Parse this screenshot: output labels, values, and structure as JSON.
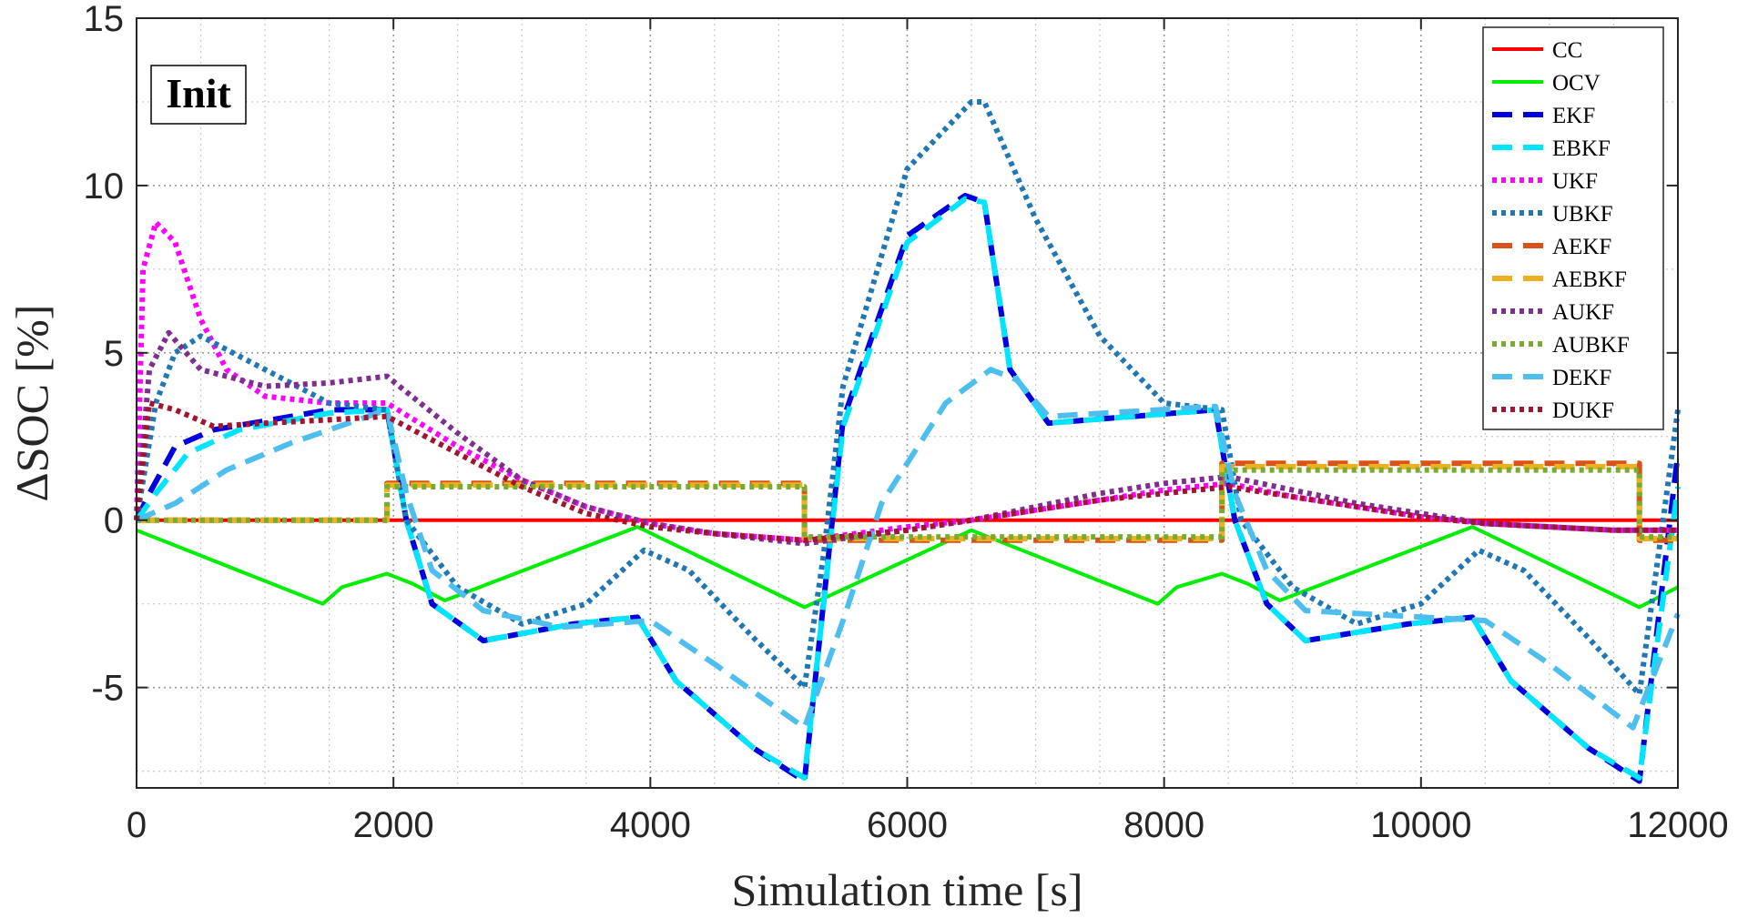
{
  "chart_data": {
    "type": "line",
    "xlabel": "Simulation time [s]",
    "ylabel": "ΔSOC [%]",
    "annotation": "Init",
    "xlim": [
      0,
      12000
    ],
    "ylim": [
      -8,
      15
    ],
    "xticks": [
      0,
      2000,
      4000,
      6000,
      8000,
      10000,
      12000
    ],
    "yticks": [
      -5,
      0,
      5,
      10,
      15
    ],
    "grid": true,
    "legend_position": "top-right",
    "series": [
      {
        "name": "CC",
        "color": "#ff0000",
        "style": "solid",
        "x": [
          0,
          12000
        ],
        "y": [
          0.0,
          0.0
        ]
      },
      {
        "name": "OCV",
        "color": "#00ee00",
        "style": "solid",
        "x": [
          0,
          1450,
          1600,
          1950,
          2150,
          2400,
          3900,
          5200,
          6500,
          7950,
          8100,
          8450,
          8650,
          8900,
          10400,
          11700,
          12000
        ],
        "y": [
          -0.3,
          -2.5,
          -2.0,
          -1.6,
          -1.9,
          -2.4,
          -0.2,
          -2.6,
          -0.3,
          -2.5,
          -2.0,
          -1.6,
          -1.9,
          -2.4,
          -0.2,
          -2.6,
          -2.0
        ]
      },
      {
        "name": "EKF",
        "color": "#0000dd",
        "style": "dash",
        "x": [
          0,
          100,
          300,
          600,
          1500,
          1950,
          2100,
          2300,
          2700,
          3400,
          3900,
          4200,
          4800,
          5200,
          5500,
          6000,
          6450,
          6600,
          6800,
          7100,
          8400,
          8550,
          8800,
          9100,
          9900,
          10400,
          10700,
          11300,
          11700,
          12000
        ],
        "y": [
          0.0,
          0.8,
          2.2,
          2.7,
          3.3,
          3.3,
          0.0,
          -2.5,
          -3.6,
          -3.1,
          -2.9,
          -4.8,
          -6.8,
          -7.8,
          3.0,
          8.5,
          9.7,
          9.5,
          4.5,
          2.9,
          3.3,
          0.0,
          -2.5,
          -3.6,
          -3.1,
          -2.9,
          -4.8,
          -6.8,
          -7.8,
          2.0
        ]
      },
      {
        "name": "EBKF",
        "color": "#00e5ff",
        "style": "dash",
        "x": [
          0,
          150,
          400,
          800,
          1500,
          1950,
          2100,
          2300,
          2700,
          3400,
          3900,
          4200,
          4800,
          5200,
          5500,
          6000,
          6450,
          6600,
          6800,
          7100,
          8400,
          8550,
          8800,
          9100,
          9900,
          10400,
          10700,
          11300,
          11700,
          12000
        ],
        "y": [
          0.0,
          0.8,
          2.0,
          2.7,
          3.2,
          3.3,
          0.0,
          -2.5,
          -3.6,
          -3.1,
          -2.9,
          -4.8,
          -6.8,
          -7.7,
          2.8,
          8.3,
          9.6,
          9.5,
          4.5,
          2.9,
          3.3,
          0.0,
          -2.5,
          -3.6,
          -3.1,
          -2.9,
          -4.8,
          -6.8,
          -7.7,
          1.0
        ]
      },
      {
        "name": "UKF",
        "color": "#ff00ff",
        "style": "dot",
        "x": [
          0,
          50,
          150,
          300,
          500,
          700,
          1000,
          1500,
          1950,
          2500,
          3000,
          3500,
          4000,
          4500,
          5200,
          6000,
          6500,
          7000,
          7500,
          8000,
          8500,
          9000,
          9500,
          10000,
          10500,
          11000,
          11500,
          12000
        ],
        "y": [
          0.0,
          7.5,
          8.9,
          8.3,
          6.0,
          4.5,
          3.7,
          3.5,
          3.5,
          2.2,
          1.2,
          0.4,
          -0.1,
          -0.4,
          -0.6,
          -0.2,
          0.0,
          0.3,
          0.6,
          0.9,
          1.1,
          0.7,
          0.4,
          0.1,
          -0.1,
          -0.2,
          -0.3,
          -0.3
        ]
      },
      {
        "name": "UBKF",
        "color": "#1f77b4",
        "style": "dot",
        "x": [
          0,
          150,
          300,
          500,
          1000,
          1500,
          1950,
          2100,
          2500,
          3000,
          3500,
          3950,
          4300,
          4800,
          5200,
          5350,
          5500,
          6000,
          6500,
          6600,
          7000,
          7500,
          8000,
          8450,
          8600,
          9000,
          9500,
          10000,
          10450,
          10800,
          11300,
          11700,
          11850,
          12000
        ],
        "y": [
          0.0,
          3.5,
          5.0,
          5.5,
          4.5,
          3.5,
          3.3,
          0.0,
          -2.0,
          -3.1,
          -2.5,
          -0.9,
          -1.5,
          -3.5,
          -5.0,
          -1.0,
          4.0,
          10.5,
          12.5,
          12.5,
          9.0,
          5.5,
          3.5,
          3.3,
          0.0,
          -2.0,
          -3.1,
          -2.5,
          -0.9,
          -1.5,
          -3.5,
          -5.2,
          -1.0,
          3.3
        ]
      },
      {
        "name": "AEKF",
        "color": "#d95319",
        "style": "dash",
        "x": [
          0,
          1950,
          1950,
          5200,
          5200,
          8450,
          8450,
          11700,
          11700,
          12000
        ],
        "y": [
          0.0,
          0.0,
          1.1,
          1.1,
          -0.6,
          -0.6,
          1.7,
          1.7,
          -0.6,
          -0.6
        ]
      },
      {
        "name": "AEBKF",
        "color": "#edb120",
        "style": "dash",
        "x": [
          0,
          1950,
          1950,
          5200,
          5200,
          8450,
          8450,
          11700,
          11700,
          12000
        ],
        "y": [
          0.0,
          0.0,
          1.05,
          1.05,
          -0.55,
          -0.55,
          1.6,
          1.6,
          -0.55,
          -0.55
        ]
      },
      {
        "name": "AUKF",
        "color": "#7e2f8e",
        "style": "dot",
        "x": [
          0,
          100,
          250,
          500,
          1000,
          1500,
          1950,
          2500,
          3000,
          3500,
          4000,
          4500,
          5200,
          6000,
          6500,
          7000,
          7500,
          8000,
          8500,
          9000,
          9500,
          10000,
          10500,
          11000,
          11500,
          12000
        ],
        "y": [
          0.0,
          4.5,
          5.6,
          4.5,
          4.0,
          4.1,
          4.3,
          2.6,
          1.2,
          0.4,
          -0.1,
          -0.4,
          -0.7,
          -0.3,
          0.0,
          0.4,
          0.8,
          1.1,
          1.3,
          0.9,
          0.5,
          0.2,
          -0.1,
          -0.2,
          -0.3,
          -0.3
        ]
      },
      {
        "name": "AUBKF",
        "color": "#77ac30",
        "style": "dot",
        "x": [
          0,
          1950,
          1950,
          5200,
          5200,
          8450,
          8450,
          11700,
          11700,
          12000
        ],
        "y": [
          0.0,
          0.0,
          1.0,
          1.0,
          -0.5,
          -0.5,
          1.5,
          1.5,
          -0.5,
          -0.5
        ]
      },
      {
        "name": "DEKF",
        "color": "#4dbeee",
        "style": "dash",
        "x": [
          0,
          300,
          700,
          1200,
          1950,
          2100,
          2300,
          2700,
          3300,
          4000,
          4500,
          5200,
          5500,
          5800,
          6300,
          6650,
          6850,
          7100,
          8400,
          8550,
          8800,
          9100,
          10500,
          11000,
          11650,
          12000
        ],
        "y": [
          0.0,
          0.5,
          1.5,
          2.3,
          3.3,
          0.8,
          -1.5,
          -2.7,
          -3.2,
          -3.0,
          -4.3,
          -6.2,
          -3.0,
          0.5,
          3.5,
          4.5,
          4.2,
          3.1,
          3.4,
          0.8,
          -1.5,
          -2.7,
          -3.0,
          -4.3,
          -6.2,
          -2.8
        ]
      },
      {
        "name": "DUKF",
        "color": "#a2142f",
        "style": "dot",
        "x": [
          0,
          100,
          300,
          600,
          1000,
          1500,
          1950,
          2500,
          3000,
          3500,
          4000,
          4500,
          5200,
          6000,
          6500,
          7000,
          7500,
          8000,
          8500,
          9000,
          9500,
          10000,
          10500,
          11000,
          11500,
          12000
        ],
        "y": [
          0.0,
          3.5,
          3.3,
          2.8,
          2.9,
          3.0,
          3.1,
          2.0,
          1.0,
          0.2,
          -0.2,
          -0.4,
          -0.6,
          -0.3,
          0.0,
          0.3,
          0.6,
          0.8,
          1.0,
          0.7,
          0.4,
          0.1,
          -0.1,
          -0.2,
          -0.3,
          -0.3
        ]
      }
    ]
  }
}
